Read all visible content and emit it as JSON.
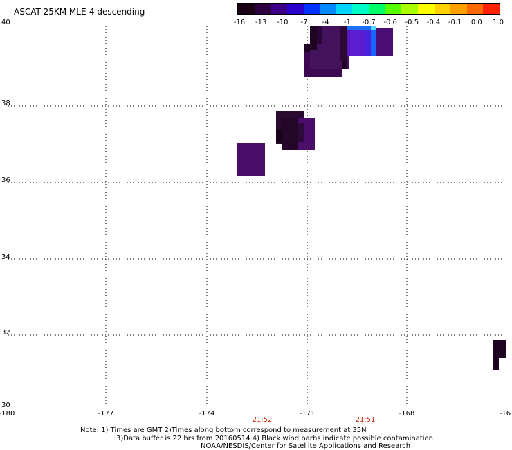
{
  "title": "ASCAT 25KM MLE-4 descending",
  "colorbar": {
    "labels": [
      "-16",
      "-13",
      "-10",
      "-7",
      "-4",
      "-1",
      "-0.7",
      "-0.6",
      "-0.5",
      "-0.4",
      "-0.1",
      "0.0",
      "1.0"
    ],
    "colors": [
      "#1a0014",
      "#2d0040",
      "#3b0085",
      "#2a00cc",
      "#0033ff",
      "#0088ff",
      "#00d4ff",
      "#00ffc8",
      "#00ff66",
      "#55ff00",
      "#aaff00",
      "#ffff00",
      "#ffd200",
      "#ffa000",
      "#ff6a00",
      "#ff2200"
    ]
  },
  "lat_labels": [
    "40",
    "38",
    "36",
    "34",
    "32",
    "30"
  ],
  "lon_labels": [
    "-180",
    "-177",
    "-174",
    "-171",
    "-168",
    "-16"
  ],
  "time_labels": [
    "21:52",
    "21:51"
  ],
  "notes": [
    "Note: 1) Times are GMT 2)Times along bottom correspond to measurement at 35N",
    "3)Data buffer is 22 hrs from 20160514 4) Black wind barbs indicate possible contamination",
    "NOAA/NESDIS/Center for Satellite Applications and Research"
  ],
  "colors": {
    "grid": "#000000",
    "time_label": "#cc2200"
  }
}
